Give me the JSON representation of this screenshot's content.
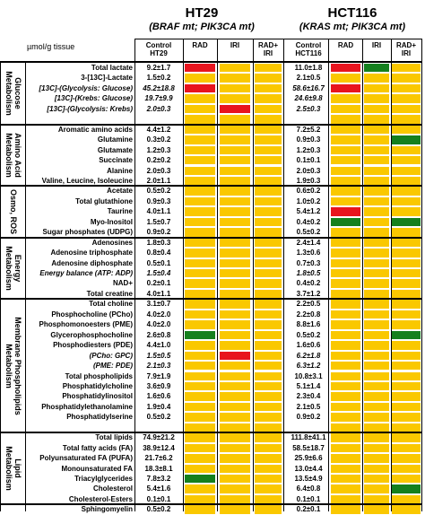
{
  "colors": {
    "yellow": "#fac800",
    "red": "#e8141e",
    "green": "#15801e"
  },
  "ht29": {
    "title": "HT29",
    "subtitle": "(BRAF mt; PIK3CA mt)"
  },
  "hct116": {
    "title": "HCT116",
    "subtitle": "(KRAS mt; PIK3CA mt)"
  },
  "unit": "µmol/g tissue",
  "col_headers": {
    "ht29_control": "Control\nHT29",
    "ht29_rad": "RAD",
    "ht29_iri": "IRI",
    "ht29_radiri": "RAD+\nIRI",
    "hct_control": "Control\nHCT116",
    "hct_rad": "RAD",
    "hct_iri": "IRI",
    "hct_radiri": "RAD+\nIRI"
  },
  "groups": [
    {
      "label": "Glucose\nMetabolism",
      "start": 0,
      "end": 5
    },
    {
      "label": "Amino Acid\nMetabolism",
      "start": 6,
      "end": 11
    },
    {
      "label": "Osmo, ROS",
      "start": 12,
      "end": 16
    },
    {
      "label": "Energy\nMetabolism",
      "start": 17,
      "end": 22
    },
    {
      "label": "Membrane Phospholipids\nMetabolism",
      "start": 23,
      "end": 35
    },
    {
      "label": "Lipid\nMetabolism",
      "start": 36,
      "end": 42
    }
  ],
  "rows": [
    {
      "label": "Total lactate",
      "italic": false,
      "ht29": "9.2±1.7",
      "hct116": "11.0±1.8",
      "c": [
        "r",
        "y",
        "y",
        "y",
        "r",
        "g",
        "y"
      ]
    },
    {
      "label": "3-[13C]-Lactate",
      "italic": false,
      "ht29": "1.5±0.2",
      "hct116": "2.1±0.5",
      "c": [
        "y",
        "y",
        "y",
        "y",
        "y",
        "y",
        "y"
      ]
    },
    {
      "label": "[13C]-(Glycolysis: Glucose)",
      "italic": true,
      "ht29": "45.2±18.8",
      "hct116": "58.6±16.7",
      "c": [
        "r",
        "r",
        "y",
        "y",
        "r",
        "y",
        "y"
      ]
    },
    {
      "label": "[13C]-(Krebs: Glucose)",
      "italic": true,
      "ht29": "19.7±9.9",
      "hct116": "24.6±9.8",
      "c": [
        "y",
        "y",
        "y",
        "y",
        "y",
        "y",
        "y"
      ]
    },
    {
      "label": "[13C]-(Glycolysis: Krebs)",
      "italic": true,
      "ht29": "2.0±0.3",
      "hct116": "2.5±0.3",
      "c": [
        "y",
        "y",
        "r",
        "y",
        "y",
        "y",
        "y"
      ]
    },
    {
      "label": "",
      "italic": false,
      "ht29": "",
      "hct116": "",
      "c": [
        "y",
        "y",
        "y",
        "y",
        "y",
        "y",
        "y"
      ]
    },
    {
      "label": "Aromatic amino acids",
      "italic": false,
      "ht29": "4.4±1.2",
      "hct116": "7.2±5.2",
      "c": [
        "y",
        "y",
        "y",
        "y",
        "y",
        "y",
        "y"
      ]
    },
    {
      "label": "Glutamine",
      "italic": false,
      "ht29": "0.3±0.2",
      "hct116": "0.9±0.3",
      "c": [
        "y",
        "y",
        "y",
        "y",
        "y",
        "y",
        "g"
      ]
    },
    {
      "label": "Glutamate",
      "italic": false,
      "ht29": "1.2±0.3",
      "hct116": "1.2±0.3",
      "c": [
        "y",
        "y",
        "y",
        "y",
        "y",
        "y",
        "y"
      ]
    },
    {
      "label": "Succinate",
      "italic": false,
      "ht29": "0.2±0.2",
      "hct116": "0.1±0.1",
      "c": [
        "y",
        "y",
        "y",
        "y",
        "y",
        "y",
        "y"
      ]
    },
    {
      "label": "Alanine",
      "italic": false,
      "ht29": "2.0±0.3",
      "hct116": "2.0±0.3",
      "c": [
        "y",
        "y",
        "y",
        "y",
        "y",
        "y",
        "y"
      ]
    },
    {
      "label": "Valine, Leucine, Isoleucine",
      "italic": false,
      "ht29": "2.0±1.1",
      "hct116": "1.9±0.3",
      "c": [
        "y",
        "y",
        "y",
        "y",
        "y",
        "y",
        "y"
      ]
    },
    {
      "label": "Acetate",
      "italic": false,
      "ht29": "0.5±0.2",
      "hct116": "0.6±0.2",
      "c": [
        "y",
        "y",
        "y",
        "y",
        "y",
        "y",
        "y"
      ]
    },
    {
      "label": "Total glutathione",
      "italic": false,
      "ht29": "0.9±0.3",
      "hct116": "1.0±0.2",
      "c": [
        "y",
        "y",
        "y",
        "y",
        "y",
        "y",
        "y"
      ]
    },
    {
      "label": "Taurine",
      "italic": false,
      "ht29": "4.0±1.1",
      "hct116": "5.4±1.2",
      "c": [
        "y",
        "y",
        "y",
        "y",
        "r",
        "y",
        "y"
      ]
    },
    {
      "label": "Myo-Inositol",
      "italic": false,
      "ht29": "1.5±0.7",
      "hct116": "0.4±0.2",
      "c": [
        "y",
        "y",
        "y",
        "y",
        "g",
        "y",
        "g"
      ]
    },
    {
      "label": "Sugar phosphates (UDPG)",
      "italic": false,
      "ht29": "0.9±0.2",
      "hct116": "0.5±0.2",
      "c": [
        "y",
        "y",
        "y",
        "y",
        "y",
        "y",
        "y"
      ]
    },
    {
      "label": "Adenosines",
      "italic": false,
      "ht29": "1.8±0.3",
      "hct116": "2.4±1.4",
      "c": [
        "y",
        "y",
        "y",
        "y",
        "y",
        "y",
        "y"
      ]
    },
    {
      "label": "Adenosine triphosphate",
      "italic": false,
      "ht29": "0.8±0.4",
      "hct116": "1.3±0.6",
      "c": [
        "y",
        "g",
        "y",
        "y",
        "y",
        "y",
        "y"
      ]
    },
    {
      "label": "Adenosine diphosphate",
      "italic": false,
      "ht29": "0.5±0.1",
      "hct116": "0.7±0.3",
      "c": [
        "y",
        "g",
        "y",
        "y",
        "y",
        "y",
        "y"
      ]
    },
    {
      "label": "Energy balance (ATP: ADP)",
      "italic": true,
      "ht29": "1.5±0.4",
      "hct116": "1.8±0.5",
      "c": [
        "y",
        "y",
        "y",
        "y",
        "y",
        "y",
        "y"
      ]
    },
    {
      "label": "NAD+",
      "italic": false,
      "ht29": "0.2±0.1",
      "hct116": "0.4±0.2",
      "c": [
        "y",
        "g",
        "y",
        "y",
        "y",
        "y",
        "y"
      ]
    },
    {
      "label": "Total creatine",
      "italic": false,
      "ht29": "4.0±1.1",
      "hct116": "3.7±1.2",
      "c": [
        "y",
        "y",
        "y",
        "y",
        "y",
        "y",
        "y"
      ]
    },
    {
      "label": "Total choline",
      "italic": false,
      "ht29": "3.1±0.7",
      "hct116": "2.2±0.5",
      "c": [
        "y",
        "y",
        "y",
        "y",
        "y",
        "y",
        "y"
      ]
    },
    {
      "label": "Phosphocholine (PCho)",
      "italic": false,
      "ht29": "4.0±2.0",
      "hct116": "2.2±0.8",
      "c": [
        "y",
        "y",
        "y",
        "y",
        "y",
        "y",
        "y"
      ]
    },
    {
      "label": "Phosphomonoesters (PME)",
      "italic": false,
      "ht29": "4.0±2.0",
      "hct116": "8.8±1.6",
      "c": [
        "y",
        "y",
        "y",
        "y",
        "y",
        "y",
        "y"
      ]
    },
    {
      "label": "Glycerophosphocholine",
      "italic": false,
      "ht29": "2.6±0.8",
      "hct116": "0.5±0.2",
      "c": [
        "g",
        "g",
        "y",
        "y",
        "y",
        "y",
        "g"
      ]
    },
    {
      "label": "Phosphodiesters (PDE)",
      "italic": false,
      "ht29": "4.4±1.0",
      "hct116": "1.6±0.6",
      "c": [
        "y",
        "y",
        "y",
        "y",
        "y",
        "y",
        "y"
      ]
    },
    {
      "label": "(PCho: GPC)",
      "italic": true,
      "ht29": "1.5±0.5",
      "hct116": "6.2±1.8",
      "c": [
        "y",
        "y",
        "r",
        "y",
        "y",
        "y",
        "y"
      ]
    },
    {
      "label": "(PME: PDE)",
      "italic": true,
      "ht29": "2.1±0.3",
      "hct116": "6.3±1.2",
      "c": [
        "y",
        "y",
        "y",
        "y",
        "y",
        "y",
        "y"
      ]
    },
    {
      "label": "Total phospholipids",
      "italic": false,
      "ht29": "7.9±1.9",
      "hct116": "10.8±3.1",
      "c": [
        "y",
        "g",
        "y",
        "y",
        "y",
        "y",
        "y"
      ]
    },
    {
      "label": "Phosphatidylcholine",
      "italic": false,
      "ht29": "3.6±0.9",
      "hct116": "5.1±1.4",
      "c": [
        "y",
        "g",
        "y",
        "y",
        "y",
        "y",
        "y"
      ]
    },
    {
      "label": "Phosphatidylinositol",
      "italic": false,
      "ht29": "1.6±0.6",
      "hct116": "2.3±0.4",
      "c": [
        "y",
        "g",
        "y",
        "y",
        "y",
        "y",
        "y"
      ]
    },
    {
      "label": "Phosphatidylethanolamine",
      "italic": false,
      "ht29": "1.9±0.4",
      "hct116": "2.1±0.5",
      "c": [
        "y",
        "g",
        "y",
        "y",
        "y",
        "y",
        "y"
      ]
    },
    {
      "label": "Phosphatidylserine",
      "italic": false,
      "ht29": "0.5±0.2",
      "hct116": "0.9±0.2",
      "c": [
        "y",
        "g",
        "y",
        "y",
        "y",
        "y",
        "y"
      ]
    },
    {
      "label": "",
      "italic": false,
      "ht29": "",
      "hct116": "",
      "c": [
        "y",
        "y",
        "y",
        "y",
        "y",
        "y",
        "y"
      ]
    },
    {
      "label": "Total lipids",
      "italic": false,
      "ht29": "74.9±21.2",
      "hct116": "111.8±41.1",
      "c": [
        "y",
        "g",
        "y",
        "y",
        "y",
        "y",
        "y"
      ]
    },
    {
      "label": "Total fatty acids (FA)",
      "italic": false,
      "ht29": "38.9±12.4",
      "hct116": "58.5±18.7",
      "c": [
        "y",
        "g",
        "y",
        "y",
        "y",
        "y",
        "y"
      ]
    },
    {
      "label": "Polyunsaturated FA (PUFA)",
      "italic": false,
      "ht29": "21.7±6.2",
      "hct116": "25.9±6.6",
      "c": [
        "y",
        "g",
        "y",
        "y",
        "y",
        "y",
        "y"
      ]
    },
    {
      "label": "Monounsaturated FA",
      "italic": false,
      "ht29": "18.3±8.1",
      "hct116": "13.0±4.4",
      "c": [
        "y",
        "g",
        "y",
        "y",
        "y",
        "y",
        "y"
      ]
    },
    {
      "label": "Triacylglycerides",
      "italic": false,
      "ht29": "7.8±3.2",
      "hct116": "13.5±4.9",
      "c": [
        "g",
        "g",
        "y",
        "y",
        "y",
        "y",
        "y"
      ]
    },
    {
      "label": "Cholesterol",
      "italic": false,
      "ht29": "5.4±1.6",
      "hct116": "6.4±0.8",
      "c": [
        "y",
        "g",
        "y",
        "y",
        "y",
        "y",
        "g"
      ]
    },
    {
      "label": "Cholesterol-Esters",
      "italic": false,
      "ht29": "0.1±0.1",
      "hct116": "0.1±0.1",
      "c": [
        "y",
        "g",
        "y",
        "y",
        "y",
        "y",
        "y"
      ]
    },
    {
      "label": "Sphingomyelin",
      "italic": false,
      "ht29": "0.5±0.2",
      "hct116": "0.2±0.1",
      "c": [
        "y",
        "g",
        "y",
        "y",
        "y",
        "y",
        "y"
      ]
    }
  ]
}
